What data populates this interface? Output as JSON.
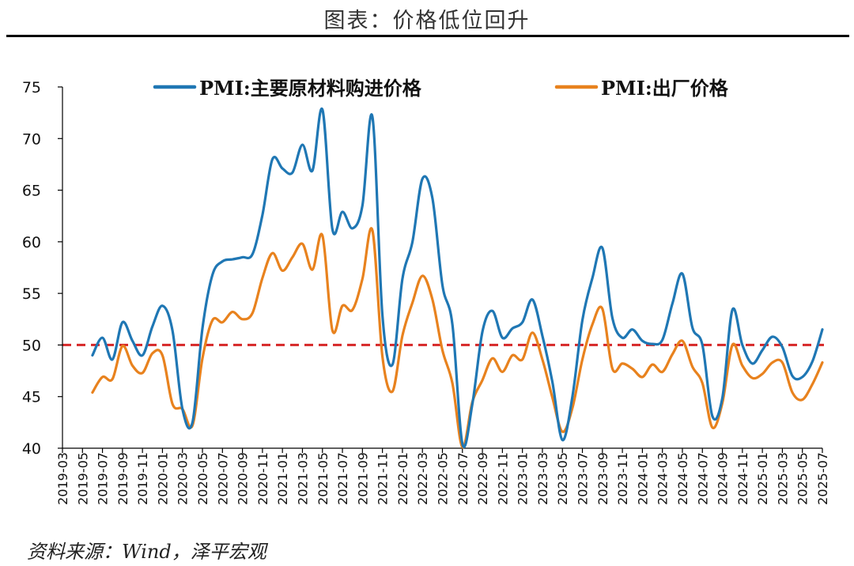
{
  "header": {
    "title": "图表：价格低位回升"
  },
  "footer": {
    "source": "资料来源：Wind，泽平宏观"
  },
  "colors": {
    "series1": "#1f77b4",
    "series2": "#e8821e",
    "reference": "#d62728",
    "axis": "#000000"
  },
  "chart_data": {
    "type": "line",
    "title": "",
    "xlabel": "",
    "ylabel": "",
    "ylim": [
      40,
      75
    ],
    "yticks": [
      40,
      45,
      50,
      55,
      60,
      65,
      70,
      75
    ],
    "x_start": "2019-03",
    "x_end": "2025-07",
    "x_tick_labels": [
      "2019-03",
      "2019-05",
      "2019-07",
      "2019-09",
      "2019-11",
      "2020-01",
      "2020-03",
      "2020-05",
      "2020-07",
      "2020-09",
      "2020-11",
      "2021-01",
      "2021-03",
      "2021-05",
      "2021-07",
      "2021-09",
      "2021-11",
      "2022-01",
      "2022-03",
      "2022-05",
      "2022-07",
      "2022-09",
      "2022-11",
      "2023-01",
      "2023-03",
      "2023-05",
      "2023-07",
      "2023-09",
      "2023-11",
      "2024-01",
      "2024-03",
      "2024-05",
      "2024-07",
      "2024-09",
      "2024-11",
      "2025-01",
      "2025-03",
      "2025-05",
      "2025-07"
    ],
    "reference_line": 50,
    "legend_position": "top",
    "x": [
      "2019-06",
      "2019-07",
      "2019-08",
      "2019-09",
      "2019-10",
      "2019-11",
      "2019-12",
      "2020-01",
      "2020-02",
      "2020-03",
      "2020-04",
      "2020-05",
      "2020-06",
      "2020-07",
      "2020-08",
      "2020-09",
      "2020-10",
      "2020-11",
      "2020-12",
      "2021-01",
      "2021-02",
      "2021-03",
      "2021-04",
      "2021-05",
      "2021-06",
      "2021-07",
      "2021-08",
      "2021-09",
      "2021-10",
      "2021-11",
      "2021-12",
      "2022-01",
      "2022-02",
      "2022-03",
      "2022-04",
      "2022-05",
      "2022-06",
      "2022-07",
      "2022-08",
      "2022-09",
      "2022-10",
      "2022-11",
      "2022-12",
      "2023-01",
      "2023-02",
      "2023-03",
      "2023-04",
      "2023-05",
      "2023-06",
      "2023-07",
      "2023-08",
      "2023-09",
      "2023-10",
      "2023-11",
      "2023-12",
      "2024-01",
      "2024-02",
      "2024-03",
      "2024-04",
      "2024-05",
      "2024-06",
      "2024-07",
      "2024-08",
      "2024-09",
      "2024-10",
      "2024-11",
      "2024-12",
      "2025-01",
      "2025-02",
      "2025-03",
      "2025-04",
      "2025-05",
      "2025-06",
      "2025-07"
    ],
    "series": [
      {
        "name": "PMI:主要原材料购进价格",
        "values": [
          49.0,
          50.7,
          48.6,
          52.2,
          50.4,
          49.0,
          51.8,
          53.8,
          51.4,
          43.8,
          42.5,
          51.6,
          56.8,
          58.1,
          58.3,
          58.5,
          58.8,
          62.6,
          68.0,
          67.1,
          66.7,
          69.4,
          66.9,
          72.8,
          61.2,
          62.9,
          61.3,
          63.5,
          72.1,
          52.9,
          48.1,
          56.4,
          60.0,
          66.1,
          64.2,
          55.8,
          52.0,
          40.4,
          44.3,
          51.3,
          53.3,
          50.7,
          51.6,
          52.2,
          54.4,
          50.9,
          46.4,
          40.8,
          45.0,
          52.4,
          56.5,
          59.4,
          52.6,
          50.7,
          51.5,
          50.4,
          50.1,
          50.5,
          54.0,
          56.9,
          51.7,
          50.0,
          43.1,
          44.9,
          53.4,
          50.0,
          48.2,
          49.5,
          50.8,
          49.8,
          47.0,
          46.9,
          48.4,
          51.5
        ]
      },
      {
        "name": "PMI:出厂价格",
        "values": [
          45.4,
          46.9,
          46.7,
          49.9,
          48.0,
          47.3,
          49.2,
          49.0,
          44.3,
          43.8,
          42.2,
          48.7,
          52.4,
          52.2,
          53.2,
          52.5,
          53.1,
          56.5,
          58.9,
          57.2,
          58.5,
          59.8,
          57.3,
          60.6,
          51.4,
          53.8,
          53.4,
          56.4,
          61.1,
          48.9,
          45.5,
          50.9,
          54.1,
          56.7,
          54.4,
          49.5,
          46.3,
          40.1,
          44.5,
          46.6,
          48.7,
          47.4,
          49.0,
          48.6,
          51.2,
          48.6,
          44.9,
          41.6,
          43.9,
          48.6,
          52.0,
          53.5,
          47.7,
          48.2,
          47.7,
          46.9,
          48.1,
          47.4,
          49.1,
          50.4,
          47.9,
          46.3,
          42.0,
          44.4,
          50.0,
          48.0,
          46.8,
          47.2,
          48.3,
          48.3,
          45.4,
          44.7,
          46.2,
          48.3
        ]
      }
    ]
  }
}
